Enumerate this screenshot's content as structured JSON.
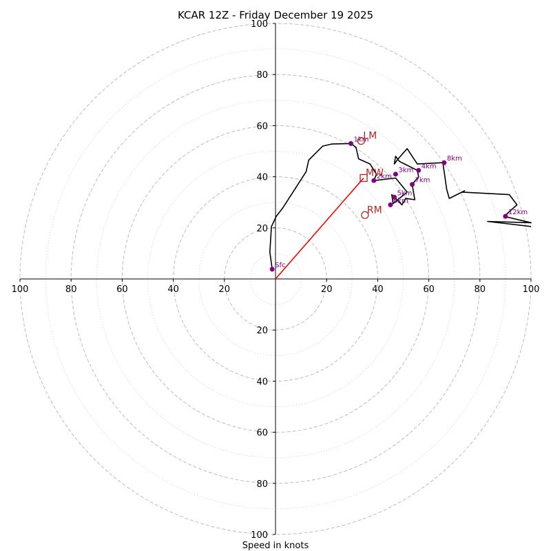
{
  "chart_data": {
    "type": "hodograph",
    "title": "KCAR 12Z - Friday December 19 2025",
    "xlabel": "Speed in knots",
    "units": "knots",
    "xlim": [
      -100,
      100
    ],
    "ylim": [
      -100,
      100
    ],
    "major_rings": [
      20,
      40,
      60,
      80,
      100
    ],
    "minor_rings": [
      10,
      30,
      50,
      70,
      90
    ],
    "x_ticks": [
      {
        "value": -100,
        "label": "100"
      },
      {
        "value": -80,
        "label": "80"
      },
      {
        "value": -60,
        "label": "60"
      },
      {
        "value": -40,
        "label": "40"
      },
      {
        "value": -20,
        "label": "20"
      },
      {
        "value": 20,
        "label": "20"
      },
      {
        "value": 40,
        "label": "40"
      },
      {
        "value": 60,
        "label": "60"
      },
      {
        "value": 80,
        "label": "80"
      },
      {
        "value": 100,
        "label": "100"
      }
    ],
    "y_ticks": [
      {
        "value": 100,
        "label": "100"
      },
      {
        "value": 80,
        "label": "80"
      },
      {
        "value": 60,
        "label": "60"
      },
      {
        "value": 40,
        "label": "40"
      },
      {
        "value": 20,
        "label": "20"
      },
      {
        "value": -20,
        "label": "20"
      },
      {
        "value": -40,
        "label": "40"
      },
      {
        "value": -60,
        "label": "60"
      },
      {
        "value": -80,
        "label": "80"
      },
      {
        "value": -100,
        "label": "100"
      }
    ],
    "hodograph_trace": [
      [
        -1.3,
        3.8
      ],
      [
        -2.2,
        10.5
      ],
      [
        -1.6,
        20.5
      ],
      [
        0.3,
        24.5
      ],
      [
        3.0,
        28.0
      ],
      [
        12.0,
        42.0
      ],
      [
        13.0,
        46.5
      ],
      [
        15.0,
        48.5
      ],
      [
        18.5,
        52.0
      ],
      [
        22.0,
        52.8
      ],
      [
        29.5,
        53.0
      ],
      [
        31.5,
        51.5
      ],
      [
        32.5,
        47.0
      ],
      [
        37.0,
        45.0
      ],
      [
        39.5,
        41.0
      ],
      [
        38.5,
        38.5
      ],
      [
        47.0,
        39.5
      ],
      [
        51.5,
        34.0
      ],
      [
        46.0,
        29.5
      ],
      [
        45.5,
        33.0
      ],
      [
        49.5,
        29.0
      ],
      [
        51.0,
        31.5
      ],
      [
        54.5,
        31.0
      ],
      [
        53.5,
        37.0
      ],
      [
        56.0,
        40.0
      ],
      [
        55.5,
        42.5
      ],
      [
        50.5,
        45.0
      ],
      [
        48.5,
        46.0
      ],
      [
        47.0,
        48.0
      ],
      [
        46.5,
        45.0
      ],
      [
        48.0,
        47.0
      ],
      [
        51.5,
        51.0
      ],
      [
        55.5,
        45.0
      ],
      [
        65.5,
        45.5
      ],
      [
        67.0,
        35.0
      ],
      [
        68.0,
        31.5
      ],
      [
        74.0,
        34.5
      ],
      [
        73.0,
        34.0
      ],
      [
        91.5,
        33.0
      ],
      [
        93.0,
        31.0
      ],
      [
        94.5,
        29.0
      ],
      [
        89.5,
        24.5
      ],
      [
        100.0,
        22.0
      ],
      [
        83.0,
        22.5
      ],
      [
        100.0,
        20.5
      ]
    ],
    "height_markers": [
      {
        "label": "Sfc",
        "u": -1.3,
        "v": 3.8
      },
      {
        "label": "1km",
        "u": 29.5,
        "v": 53.0
      },
      {
        "label": "2km",
        "u": 38.5,
        "v": 38.5
      },
      {
        "label": "3km",
        "u": 47.0,
        "v": 41.0
      },
      {
        "label": "4km",
        "u": 56.0,
        "v": 42.5
      },
      {
        "label": "5km",
        "u": 46.5,
        "v": 32.0
      },
      {
        "label": "6km",
        "u": 45.0,
        "v": 29.0
      },
      {
        "label": "7km",
        "u": 53.5,
        "v": 37.0
      },
      {
        "label": "8km",
        "u": 66.0,
        "v": 45.5
      },
      {
        "label": "12km",
        "u": 90.0,
        "v": 24.5
      }
    ],
    "storm_motion": [
      {
        "label": "LM",
        "marker": "circle",
        "u": 33.5,
        "v": 54.0
      },
      {
        "label": "MW",
        "marker": "square",
        "u": 34.5,
        "v": 39.5
      },
      {
        "label": "RM",
        "marker": "circle",
        "u": 35.0,
        "v": 25.0
      }
    ],
    "mean_wind_vector": {
      "u": 34.5,
      "v": 39.5
    },
    "colors": {
      "trace": "#000000",
      "height_marker": "#800080",
      "storm_motion": "#b22222",
      "vector": "#ff0000",
      "grid": "#bbbbbb",
      "axis": "#000000"
    }
  }
}
